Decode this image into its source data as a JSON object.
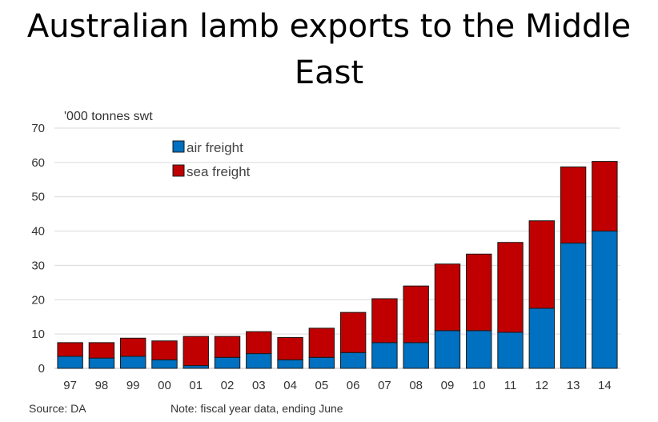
{
  "chart_data": {
    "type": "bar",
    "stacked": true,
    "title": "Australian lamb exports to the Middle East",
    "ylabel": "'000 tonnes swt",
    "xlabel": "",
    "ylim": [
      0,
      70
    ],
    "yticks": [
      0,
      10,
      20,
      30,
      40,
      50,
      60,
      70
    ],
    "categories": [
      "97",
      "98",
      "99",
      "00",
      "01",
      "02",
      "03",
      "04",
      "05",
      "06",
      "07",
      "08",
      "09",
      "10",
      "11",
      "12",
      "13",
      "14"
    ],
    "series": [
      {
        "name": "air freight",
        "color": "#0070C0",
        "values": [
          3.5,
          3.0,
          3.5,
          2.5,
          0.8,
          3.2,
          4.3,
          2.5,
          3.2,
          4.6,
          7.5,
          7.5,
          11.0,
          11.0,
          10.5,
          17.5,
          36.5,
          40.0
        ]
      },
      {
        "name": "sea freight",
        "color": "#C00000",
        "values": [
          4.0,
          4.5,
          5.3,
          5.5,
          8.5,
          6.1,
          6.4,
          6.5,
          8.5,
          11.7,
          12.8,
          16.5,
          19.4,
          22.3,
          26.2,
          25.5,
          22.2,
          20.3
        ]
      }
    ],
    "grid": true,
    "legend": "top-left",
    "source": "Source: DA",
    "note": "Note: fiscal year data, ending June"
  }
}
